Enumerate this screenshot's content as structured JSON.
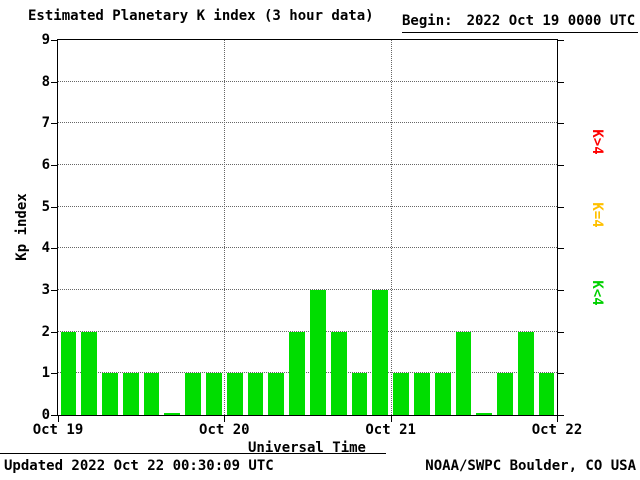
{
  "header": {
    "title": "Estimated Planetary K index (3 hour data)",
    "begin_label": "Begin:",
    "begin_value": "2022 Oct 19 0000 UTC"
  },
  "footer": {
    "updated": "Updated 2022 Oct 22 00:30:09 UTC",
    "source": "NOAA/SWPC Boulder, CO USA"
  },
  "legend": [
    {
      "name": "k-gt-4",
      "label": "K>4",
      "color": "#ff0000"
    },
    {
      "name": "k-eq-4",
      "label": "K=4",
      "color": "#ffc000"
    },
    {
      "name": "k-lt-4",
      "label": "K<4",
      "color": "#00d000"
    }
  ],
  "chart_data": {
    "type": "bar",
    "title": "Estimated Planetary K index (3 hour data)",
    "xlabel": "Universal Time",
    "ylabel": "Kp index",
    "ylim": [
      0,
      9
    ],
    "yticks": [
      0,
      1,
      2,
      3,
      4,
      5,
      6,
      7,
      8,
      9
    ],
    "x_tick_labels": [
      "Oct 19",
      "Oct 20",
      "Oct 21",
      "Oct 22"
    ],
    "hours_per_bar": 3,
    "bars_per_day": 8,
    "bar_color": "#00dd00",
    "grid": "dotted horizontal lines at integers 1-8, dotted vertical lines at day boundaries",
    "values": [
      2,
      2,
      1,
      1,
      1,
      0,
      1,
      1,
      1,
      1,
      1,
      2,
      3,
      2,
      1,
      3,
      1,
      1,
      1,
      2,
      0,
      1,
      2,
      1
    ]
  }
}
